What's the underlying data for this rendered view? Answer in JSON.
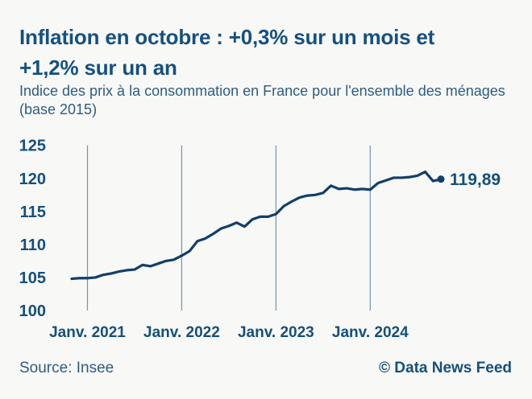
{
  "header": {
    "title": "Inflation en octobre : +0,3% sur un mois et +1,2% sur un an",
    "title_lines": [
      "Inflation en octobre : +0,3% sur un mois et",
      "+1,2% sur un an"
    ],
    "subtitle": "Indice des prix à la consommation en France pour l'ensemble des ménages (base 2015)",
    "subtitle_lines": [
      "Indice des prix à la consommation en France pour l'ensemble des ménages",
      "(base 2015)"
    ]
  },
  "footer": {
    "source": "Source: Insee",
    "credit": "© Data News Feed"
  },
  "chart_data": {
    "type": "line",
    "series_name": "Indice des prix à la consommation en France (base 2015)",
    "x": [
      "2020-11",
      "2020-12",
      "2021-01",
      "2021-02",
      "2021-03",
      "2021-04",
      "2021-05",
      "2021-06",
      "2021-07",
      "2021-08",
      "2021-09",
      "2021-10",
      "2021-11",
      "2021-12",
      "2022-01",
      "2022-02",
      "2022-03",
      "2022-04",
      "2022-05",
      "2022-06",
      "2022-07",
      "2022-08",
      "2022-09",
      "2022-10",
      "2022-11",
      "2022-12",
      "2023-01",
      "2023-02",
      "2023-03",
      "2023-04",
      "2023-05",
      "2023-06",
      "2023-07",
      "2023-08",
      "2023-09",
      "2023-10",
      "2023-11",
      "2023-12",
      "2024-01",
      "2024-02",
      "2024-03",
      "2024-04",
      "2024-05",
      "2024-06",
      "2024-07",
      "2024-08",
      "2024-09",
      "2024-10"
    ],
    "values": [
      104.8,
      104.9,
      104.9,
      105.0,
      105.4,
      105.6,
      105.9,
      106.1,
      106.2,
      106.9,
      106.7,
      107.1,
      107.5,
      107.7,
      108.3,
      109.0,
      110.5,
      110.9,
      111.6,
      112.4,
      112.8,
      113.3,
      112.7,
      113.8,
      114.2,
      114.2,
      114.6,
      115.8,
      116.5,
      117.1,
      117.4,
      117.5,
      117.8,
      118.9,
      118.4,
      118.5,
      118.3,
      118.4,
      118.3,
      119.3,
      119.7,
      120.1,
      120.1,
      120.2,
      120.4,
      121.0,
      119.6,
      119.89
    ],
    "ylim": [
      100,
      125
    ],
    "y_ticks": [
      125,
      120,
      115,
      110,
      105,
      100
    ],
    "x_ticks": [
      {
        "label": "Janv. 2021",
        "index": 2
      },
      {
        "label": "Janv. 2022",
        "index": 14
      },
      {
        "label": "Janv. 2023",
        "index": 26
      },
      {
        "label": "Janv. 2024",
        "index": 38
      }
    ],
    "end_label": "119,89",
    "end_value": 119.89,
    "grid": "vertical-only",
    "legend": "none",
    "colors": {
      "line": "#123f6a",
      "grid": "#7494ad",
      "axis_text": "#14507c",
      "title_text": "#155180",
      "subtitle_text": "#2d5d83",
      "background": "#f8f8f6"
    }
  }
}
